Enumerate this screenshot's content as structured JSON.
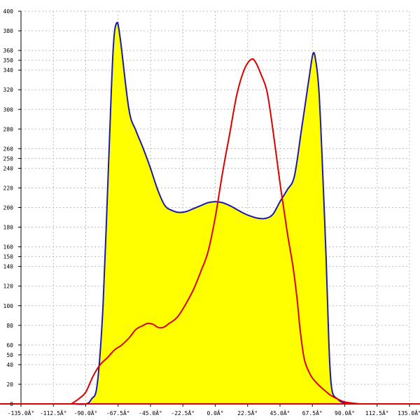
{
  "chart_data": {
    "type": "area",
    "title": "",
    "xlabel": "",
    "ylabel": "",
    "xlim": [
      -135,
      135
    ],
    "ylim": [
      0,
      400
    ],
    "grid": true,
    "x_ticks": [
      {
        "value": -135,
        "label": "-135.0Â°"
      },
      {
        "value": -112.5,
        "label": "-112.5Â°"
      },
      {
        "value": -90,
        "label": "-90.0Â°"
      },
      {
        "value": -67.5,
        "label": "-67.5Â°"
      },
      {
        "value": -45,
        "label": "-45.0Â°"
      },
      {
        "value": -22.5,
        "label": "-22.5Â°"
      },
      {
        "value": 0,
        "label": "0.0Â°"
      },
      {
        "value": 22.5,
        "label": "22.5Â°"
      },
      {
        "value": 45,
        "label": "45.0Â°"
      },
      {
        "value": 67.5,
        "label": "67.5Â°"
      },
      {
        "value": 90,
        "label": "90.0Â°"
      },
      {
        "value": 112.5,
        "label": "112.5Â°"
      },
      {
        "value": 135,
        "label": "135.0Â°"
      }
    ],
    "y_ticks": [
      {
        "value": 0,
        "label": "0"
      },
      {
        "value": 20,
        "label": "20"
      },
      {
        "value": 40,
        "label": "40"
      },
      {
        "value": 50,
        "label": "50"
      },
      {
        "value": 60,
        "label": "60"
      },
      {
        "value": 80,
        "label": "80"
      },
      {
        "value": 100,
        "label": "100"
      },
      {
        "value": 120,
        "label": "120"
      },
      {
        "value": 140,
        "label": "140"
      },
      {
        "value": 150,
        "label": "150"
      },
      {
        "value": 160,
        "label": "160"
      },
      {
        "value": 180,
        "label": "180"
      },
      {
        "value": 200,
        "label": "200"
      },
      {
        "value": 220,
        "label": "220"
      },
      {
        "value": 240,
        "label": "240"
      },
      {
        "value": 250,
        "label": "250"
      },
      {
        "value": 260,
        "label": "260"
      },
      {
        "value": 280,
        "label": "280"
      },
      {
        "value": 300,
        "label": "300"
      },
      {
        "value": 320,
        "label": "320"
      },
      {
        "value": 340,
        "label": "340"
      },
      {
        "value": 350,
        "label": "350"
      },
      {
        "value": 360,
        "label": "360"
      },
      {
        "value": 380,
        "label": "380"
      },
      {
        "value": 400,
        "label": "400"
      }
    ],
    "series": [
      {
        "color": "#1a1aaa",
        "fill": "#ffff00",
        "points": [
          [
            -100,
            0
          ],
          [
            -90,
            0
          ],
          [
            -86,
            5
          ],
          [
            -82,
            20
          ],
          [
            -78,
            100
          ],
          [
            -74,
            250
          ],
          [
            -71,
            360
          ],
          [
            -68.5,
            388
          ],
          [
            -66,
            372
          ],
          [
            -60,
            300
          ],
          [
            -55,
            278
          ],
          [
            -50,
            260
          ],
          [
            -45,
            240
          ],
          [
            -40,
            218
          ],
          [
            -35,
            202
          ],
          [
            -30,
            197
          ],
          [
            -25,
            195
          ],
          [
            -20,
            196
          ],
          [
            -15,
            199
          ],
          [
            -10,
            202
          ],
          [
            -5,
            205
          ],
          [
            0,
            206
          ],
          [
            5,
            205
          ],
          [
            10,
            202
          ],
          [
            15,
            198
          ],
          [
            20,
            194
          ],
          [
            25,
            191
          ],
          [
            30,
            189
          ],
          [
            35,
            189
          ],
          [
            40,
            193
          ],
          [
            45,
            206
          ],
          [
            50,
            218
          ],
          [
            55,
            232
          ],
          [
            60,
            280
          ],
          [
            65,
            330
          ],
          [
            68,
            357
          ],
          [
            70,
            348
          ],
          [
            72,
            320
          ],
          [
            74,
            260
          ],
          [
            77,
            150
          ],
          [
            79,
            60
          ],
          [
            81,
            15
          ],
          [
            85,
            5
          ],
          [
            90,
            1
          ],
          [
            100,
            0
          ]
        ]
      },
      {
        "color": "#dd0000",
        "points": [
          [
            -100,
            0
          ],
          [
            -95,
            5
          ],
          [
            -90,
            12
          ],
          [
            -85,
            28
          ],
          [
            -80,
            40
          ],
          [
            -75,
            47
          ],
          [
            -70,
            55
          ],
          [
            -65,
            60
          ],
          [
            -60,
            67
          ],
          [
            -55,
            76
          ],
          [
            -50,
            80
          ],
          [
            -47,
            82
          ],
          [
            -43,
            81
          ],
          [
            -40,
            78
          ],
          [
            -36,
            78
          ],
          [
            -32,
            82
          ],
          [
            -28,
            86
          ],
          [
            -25,
            91
          ],
          [
            -20,
            103
          ],
          [
            -15,
            117
          ],
          [
            -10,
            135
          ],
          [
            -5,
            155
          ],
          [
            0,
            190
          ],
          [
            5,
            235
          ],
          [
            10,
            275
          ],
          [
            15,
            315
          ],
          [
            20,
            340
          ],
          [
            25,
            351
          ],
          [
            28,
            348
          ],
          [
            32,
            335
          ],
          [
            36,
            318
          ],
          [
            40,
            280
          ],
          [
            45,
            225
          ],
          [
            50,
            175
          ],
          [
            54,
            140
          ],
          [
            57,
            105
          ],
          [
            59,
            75
          ],
          [
            62,
            45
          ],
          [
            66,
            30
          ],
          [
            70,
            22
          ],
          [
            75,
            15
          ],
          [
            80,
            9
          ],
          [
            85,
            5
          ],
          [
            90,
            2
          ],
          [
            100,
            0
          ]
        ]
      }
    ]
  }
}
